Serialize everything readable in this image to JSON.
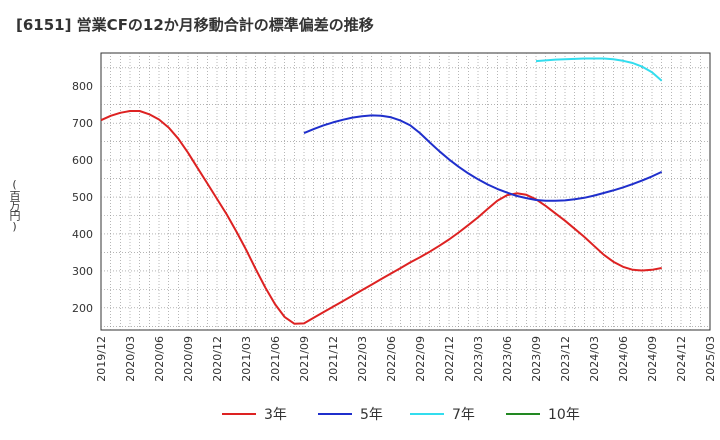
{
  "header": {
    "title": "[6151]  営業CFの12か月移動合計の標準偏差の推移",
    "y_unit": "(百万円)"
  },
  "chart_data": {
    "type": "line",
    "title": "[6151]  営業CFの12か月移動合計の標準偏差の推移",
    "xlabel": "",
    "ylabel": "(百万円)",
    "ylim": [
      140,
      890
    ],
    "y_ticks": [
      200,
      300,
      400,
      500,
      600,
      700,
      800
    ],
    "x_range": [
      "2019/12",
      "2025/03"
    ],
    "x_ticks": [
      "2019/12",
      "2020/03",
      "2020/06",
      "2020/09",
      "2020/12",
      "2021/03",
      "2021/06",
      "2021/09",
      "2021/12",
      "2022/03",
      "2022/06",
      "2022/09",
      "2022/12",
      "2023/03",
      "2023/06",
      "2023/09",
      "2023/12",
      "2024/03",
      "2024/06",
      "2024/09",
      "2024/12",
      "2025/03"
    ],
    "grid": true,
    "legend_position": "bottom",
    "series": [
      {
        "name": "3年",
        "color": "#dd2222",
        "points": [
          [
            "2019/12",
            708
          ],
          [
            "2020/01",
            720
          ],
          [
            "2020/02",
            728
          ],
          [
            "2020/03",
            733
          ],
          [
            "2020/04",
            733
          ],
          [
            "2020/05",
            724
          ],
          [
            "2020/06",
            710
          ],
          [
            "2020/07",
            688
          ],
          [
            "2020/08",
            658
          ],
          [
            "2020/09",
            620
          ],
          [
            "2020/10",
            578
          ],
          [
            "2020/11",
            537
          ],
          [
            "2020/12",
            495
          ],
          [
            "2021/01",
            453
          ],
          [
            "2021/02",
            407
          ],
          [
            "2021/03",
            358
          ],
          [
            "2021/04",
            305
          ],
          [
            "2021/05",
            255
          ],
          [
            "2021/06",
            210
          ],
          [
            "2021/07",
            175
          ],
          [
            "2021/08",
            157
          ],
          [
            "2021/09",
            158
          ],
          [
            "2021/10",
            173
          ],
          [
            "2021/11",
            188
          ],
          [
            "2021/12",
            203
          ],
          [
            "2022/01",
            218
          ],
          [
            "2022/02",
            233
          ],
          [
            "2022/03",
            248
          ],
          [
            "2022/04",
            263
          ],
          [
            "2022/05",
            278
          ],
          [
            "2022/06",
            293
          ],
          [
            "2022/07",
            308
          ],
          [
            "2022/08",
            323
          ],
          [
            "2022/09",
            337
          ],
          [
            "2022/10",
            352
          ],
          [
            "2022/11",
            368
          ],
          [
            "2022/12",
            385
          ],
          [
            "2023/01",
            404
          ],
          [
            "2023/02",
            424
          ],
          [
            "2023/03",
            445
          ],
          [
            "2023/04",
            468
          ],
          [
            "2023/05",
            490
          ],
          [
            "2023/06",
            505
          ],
          [
            "2023/07",
            510
          ],
          [
            "2023/08",
            506
          ],
          [
            "2023/09",
            494
          ],
          [
            "2023/10",
            476
          ],
          [
            "2023/11",
            456
          ],
          [
            "2023/12",
            436
          ],
          [
            "2024/01",
            414
          ],
          [
            "2024/02",
            392
          ],
          [
            "2024/03",
            368
          ],
          [
            "2024/04",
            344
          ],
          [
            "2024/05",
            325
          ],
          [
            "2024/06",
            311
          ],
          [
            "2024/07",
            303
          ],
          [
            "2024/08",
            301
          ],
          [
            "2024/09",
            303
          ],
          [
            "2024/10",
            308
          ]
        ]
      },
      {
        "name": "5年",
        "color": "#1f2fcc",
        "points": [
          [
            "2021/09",
            673
          ],
          [
            "2021/10",
            684
          ],
          [
            "2021/11",
            694
          ],
          [
            "2021/12",
            702
          ],
          [
            "2022/01",
            709
          ],
          [
            "2022/02",
            715
          ],
          [
            "2022/03",
            719
          ],
          [
            "2022/04",
            721
          ],
          [
            "2022/05",
            720
          ],
          [
            "2022/06",
            716
          ],
          [
            "2022/07",
            707
          ],
          [
            "2022/08",
            694
          ],
          [
            "2022/09",
            673
          ],
          [
            "2022/10",
            648
          ],
          [
            "2022/11",
            624
          ],
          [
            "2022/12",
            602
          ],
          [
            "2023/01",
            582
          ],
          [
            "2023/02",
            564
          ],
          [
            "2023/03",
            548
          ],
          [
            "2023/04",
            534
          ],
          [
            "2023/05",
            522
          ],
          [
            "2023/06",
            512
          ],
          [
            "2023/07",
            503
          ],
          [
            "2023/08",
            497
          ],
          [
            "2023/09",
            492
          ],
          [
            "2023/10",
            490
          ],
          [
            "2023/11",
            490
          ],
          [
            "2023/12",
            491
          ],
          [
            "2024/01",
            494
          ],
          [
            "2024/02",
            498
          ],
          [
            "2024/03",
            504
          ],
          [
            "2024/04",
            511
          ],
          [
            "2024/05",
            518
          ],
          [
            "2024/06",
            526
          ],
          [
            "2024/07",
            535
          ],
          [
            "2024/08",
            545
          ],
          [
            "2024/09",
            556
          ],
          [
            "2024/10",
            568
          ]
        ]
      },
      {
        "name": "7年",
        "color": "#33ddee",
        "points": [
          [
            "2023/09",
            868
          ],
          [
            "2023/10",
            870
          ],
          [
            "2023/11",
            872
          ],
          [
            "2023/12",
            873
          ],
          [
            "2024/01",
            874
          ],
          [
            "2024/02",
            875
          ],
          [
            "2024/03",
            875
          ],
          [
            "2024/04",
            875
          ],
          [
            "2024/05",
            873
          ],
          [
            "2024/06",
            869
          ],
          [
            "2024/07",
            863
          ],
          [
            "2024/08",
            853
          ],
          [
            "2024/09",
            838
          ],
          [
            "2024/10",
            815
          ]
        ]
      },
      {
        "name": "10年",
        "color": "#228822",
        "points": []
      }
    ]
  }
}
